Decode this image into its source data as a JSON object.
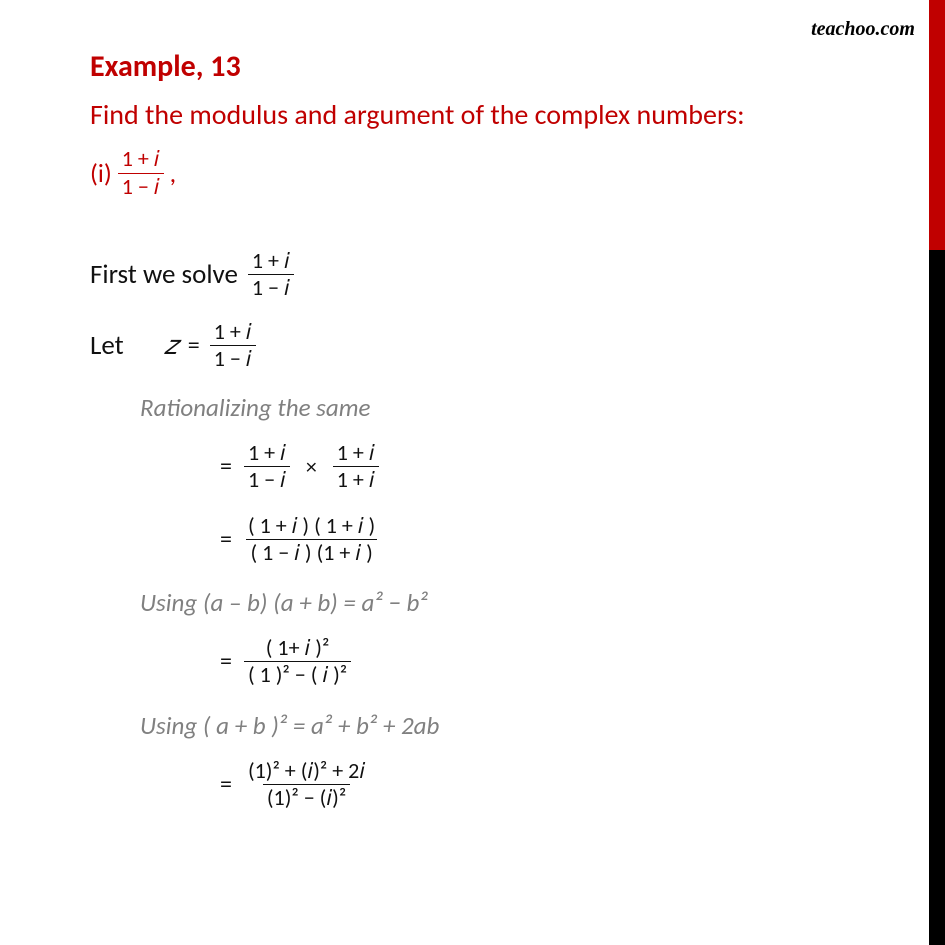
{
  "watermark": "teachoo.com",
  "heading": "Example,  13",
  "prompt": "Find the modulus and argument of the complex numbers:",
  "subpart_label": "(i)",
  "subpart_comma": ",",
  "frac_main": {
    "num": "1 + 𝑖",
    "den": "1 − 𝑖"
  },
  "line_first": "First we solve",
  "line_let": "Let",
  "z_var": "𝑧",
  "equals": "=",
  "times": "×",
  "note_rationalize": "Rationalizing the same",
  "step1": {
    "f1": {
      "num": "1 + 𝑖",
      "den": "1 − 𝑖"
    },
    "f2": {
      "num": "1 + 𝑖",
      "den": "1 + 𝑖"
    }
  },
  "step2": {
    "num": "( 1 + 𝑖 ) ( 1 + 𝑖 )",
    "den": "( 1 −  𝑖 )  (1 + 𝑖 )"
  },
  "note_diff_sq": "Using (a – b) (a + b) = a² − b²",
  "step3": {
    "num": "( 1+ 𝑖 )²",
    "den": "( 1 )² − ( 𝑖 )²"
  },
  "note_sq_sum": "Using ( a + b )² = a² + b² + 2ab",
  "step4": {
    "num": "(1)² + (𝑖)² + 2𝑖",
    "den": "(1)² − (𝑖)²"
  },
  "colors": {
    "accent": "#c00000",
    "note_gray": "#808080",
    "text": "#111111",
    "bg": "#ffffff"
  }
}
